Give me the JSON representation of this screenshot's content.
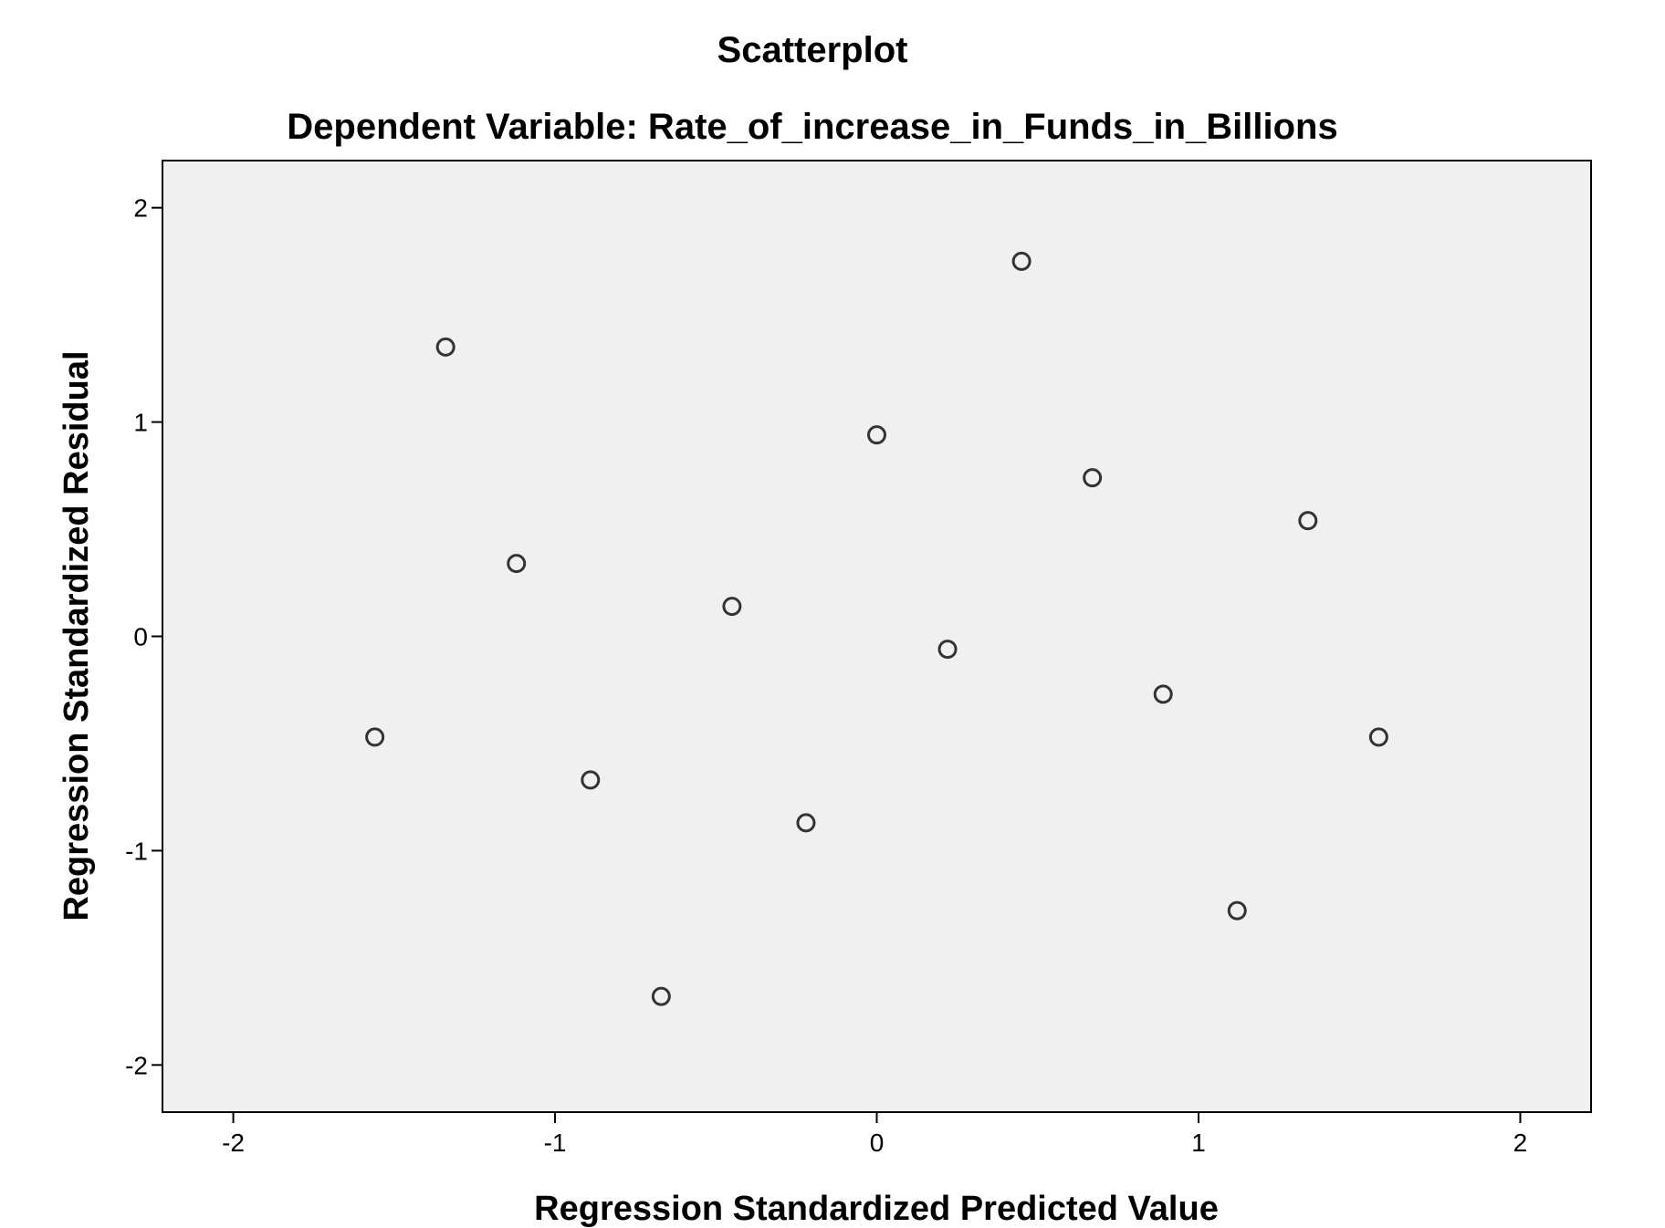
{
  "chart_data": {
    "type": "scatter",
    "title": "Scatterplot",
    "subtitle": "Dependent Variable: Rate_of_increase_in_Funds_in_Billions",
    "xlabel": "Regression Standardized Predicted Value",
    "ylabel": "Regression Standardized Residual",
    "xlim": [
      -2.22,
      2.22
    ],
    "ylim": [
      -2.22,
      2.22
    ],
    "xticks": [
      "-2",
      "-1",
      "0",
      "1",
      "2"
    ],
    "yticks": [
      "2",
      "1",
      "0",
      "-1",
      "-2"
    ],
    "grid": false,
    "legend": "none",
    "colors": {
      "plot_background": "#f0f0f0",
      "marker_stroke": "#333333",
      "axis": "#000000"
    },
    "points": [
      {
        "x": -1.56,
        "y": -0.47
      },
      {
        "x": -1.34,
        "y": 1.35
      },
      {
        "x": -1.12,
        "y": 0.34
      },
      {
        "x": -0.89,
        "y": -0.67
      },
      {
        "x": -0.67,
        "y": -1.68
      },
      {
        "x": -0.45,
        "y": 0.14
      },
      {
        "x": -0.22,
        "y": -0.87
      },
      {
        "x": 0.0,
        "y": 0.94
      },
      {
        "x": 0.22,
        "y": -0.06
      },
      {
        "x": 0.45,
        "y": 1.75
      },
      {
        "x": 0.67,
        "y": 0.74
      },
      {
        "x": 0.89,
        "y": -0.27
      },
      {
        "x": 1.12,
        "y": -1.28
      },
      {
        "x": 1.34,
        "y": 0.54
      },
      {
        "x": 1.56,
        "y": -0.47
      }
    ]
  }
}
